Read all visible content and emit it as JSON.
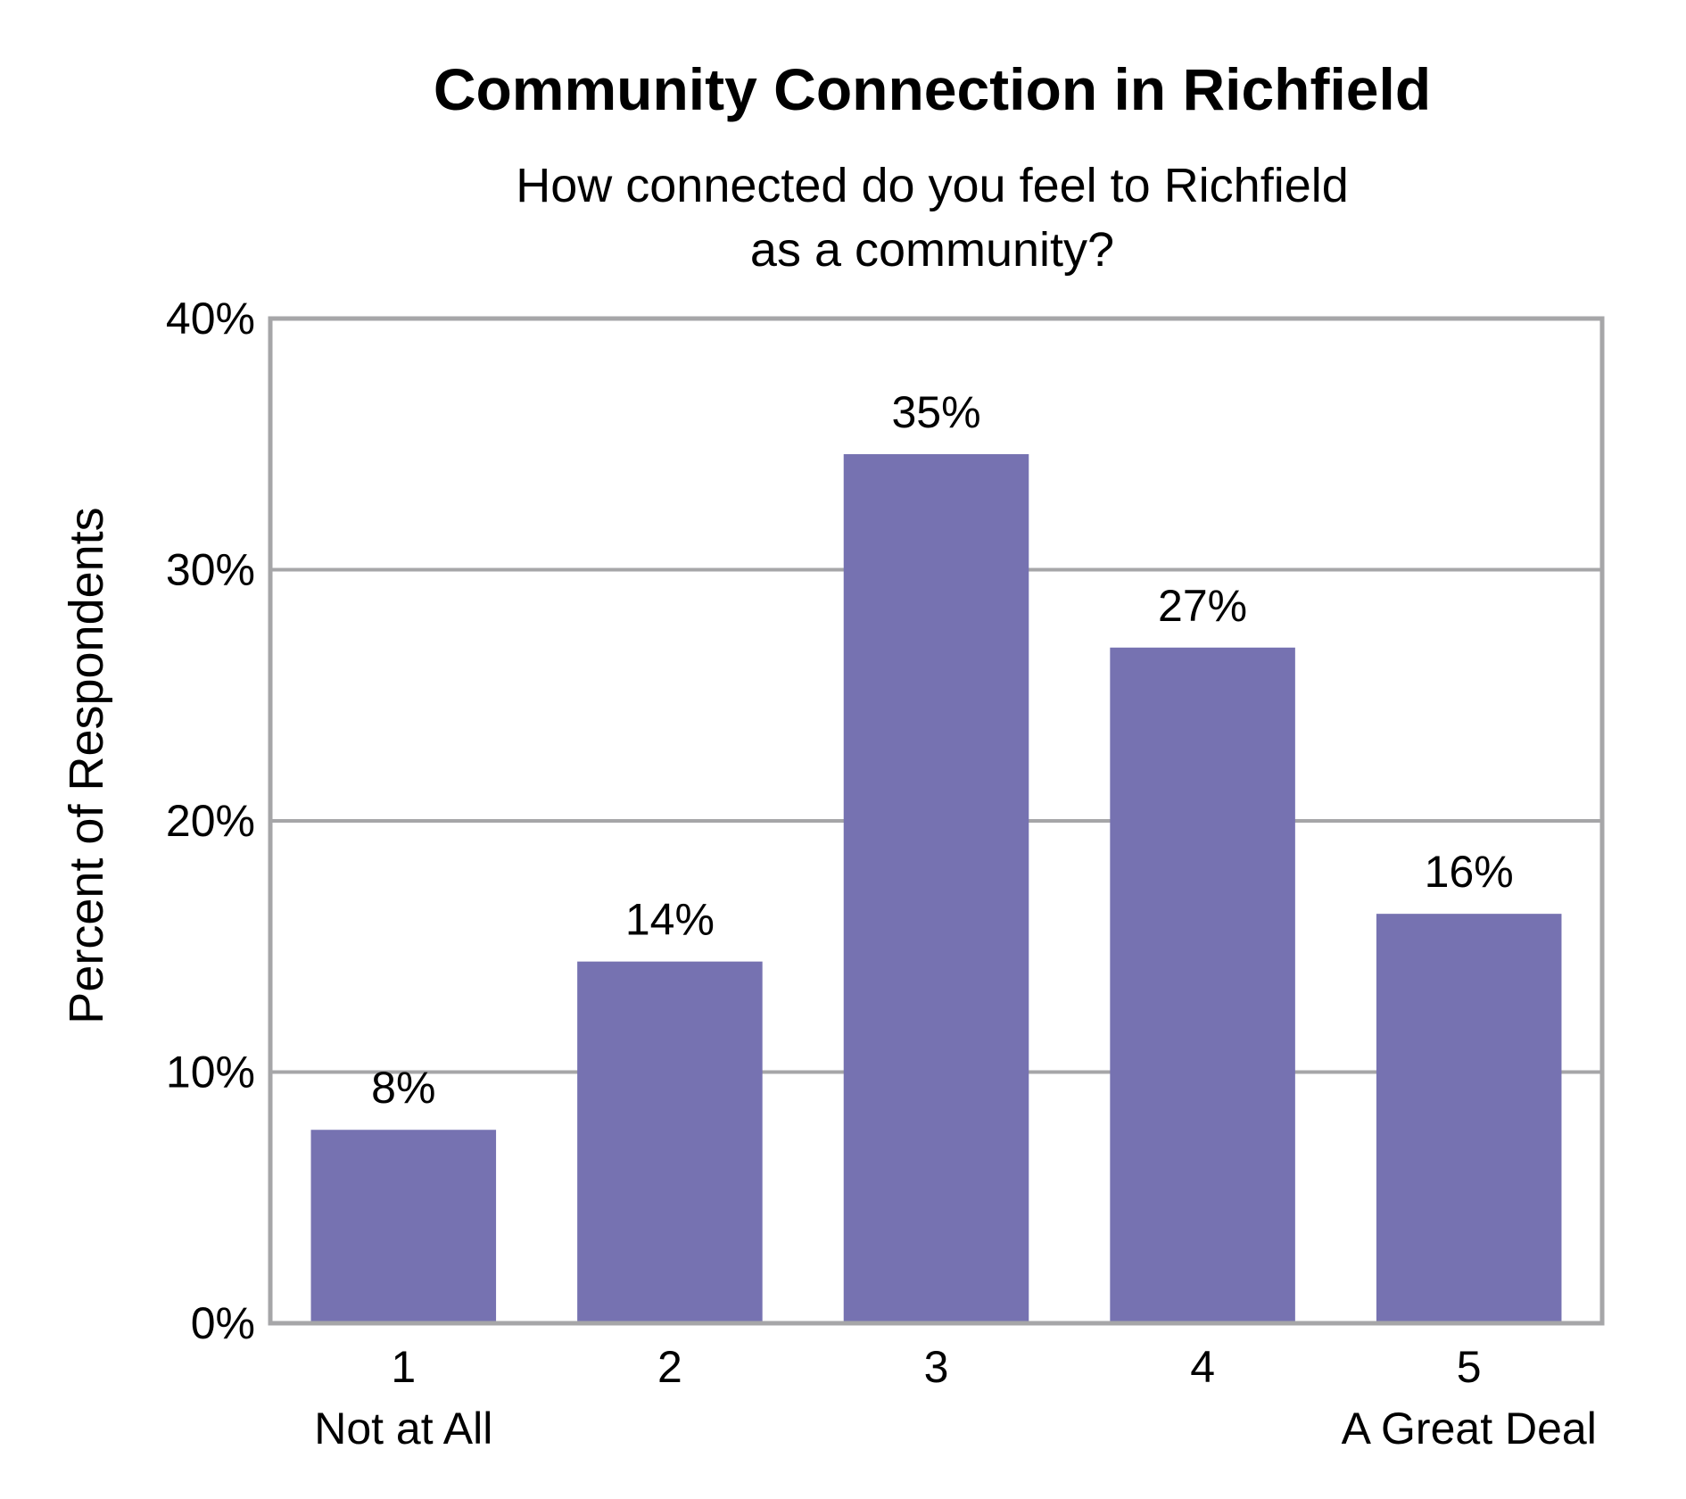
{
  "chart_data": {
    "type": "bar",
    "title": "Community Connection in Richfield",
    "subtitle_lines": [
      "How connected do you feel to Richfield",
      "as a community?"
    ],
    "ylabel": "Percent of Respondents",
    "xlabel": "",
    "categories": [
      "1",
      "2",
      "3",
      "4",
      "5"
    ],
    "category_sublabels": [
      "Not at All",
      "",
      "",
      "",
      "A Great Deal"
    ],
    "values": [
      7.7,
      14.4,
      34.6,
      26.9,
      16.3
    ],
    "data_labels": [
      "8%",
      "14%",
      "35%",
      "27%",
      "16%"
    ],
    "ylim": [
      0,
      40
    ],
    "yticks": [
      0,
      10,
      20,
      30,
      40
    ],
    "ytick_labels": [
      "0%",
      "10%",
      "20%",
      "30%",
      "40%"
    ],
    "grid": true,
    "bar_color": "#7672b1",
    "grid_color": "#a6a6a8",
    "frame_color": "#a6a6a8"
  }
}
